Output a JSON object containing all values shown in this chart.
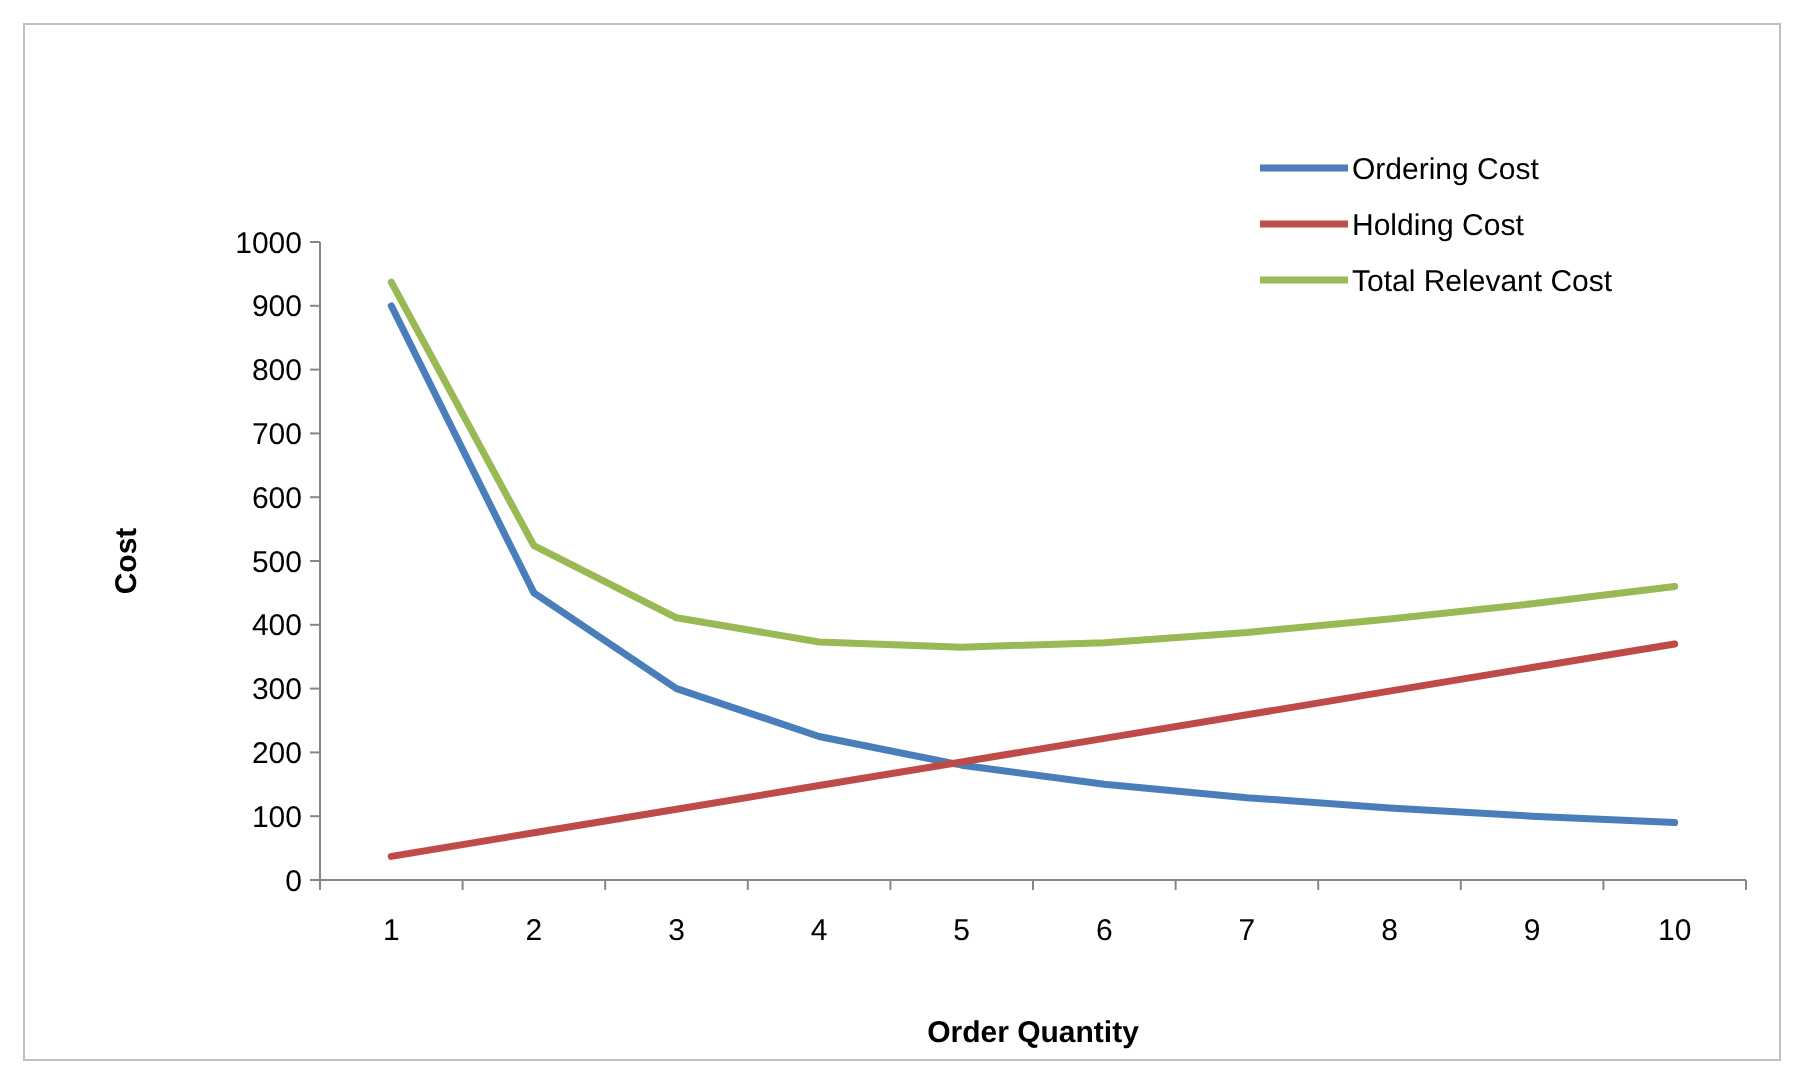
{
  "chart_data": {
    "type": "line",
    "xlabel": "Order Quantity",
    "ylabel": "Cost",
    "categories": [
      "1",
      "2",
      "3",
      "4",
      "5",
      "6",
      "7",
      "8",
      "9",
      "10"
    ],
    "series": [
      {
        "name": "Ordering Cost",
        "color": "#4a7ebb",
        "values": [
          900,
          450,
          300,
          225,
          180,
          150,
          129,
          113,
          100,
          90
        ]
      },
      {
        "name": "Holding Cost",
        "color": "#be4b48",
        "values": [
          37,
          74,
          111,
          148,
          185,
          222,
          259,
          296,
          333,
          370
        ]
      },
      {
        "name": "Total Relevant Cost",
        "color": "#98b954",
        "values": [
          937,
          524,
          411,
          373,
          365,
          372,
          388,
          409,
          433,
          460
        ]
      }
    ],
    "ylim": [
      0,
      1000
    ],
    "yticks": [
      0,
      100,
      200,
      300,
      400,
      500,
      600,
      700,
      800,
      900,
      1000
    ],
    "grid": false,
    "legend": "top right",
    "marker": "none",
    "line_style": "solid"
  }
}
